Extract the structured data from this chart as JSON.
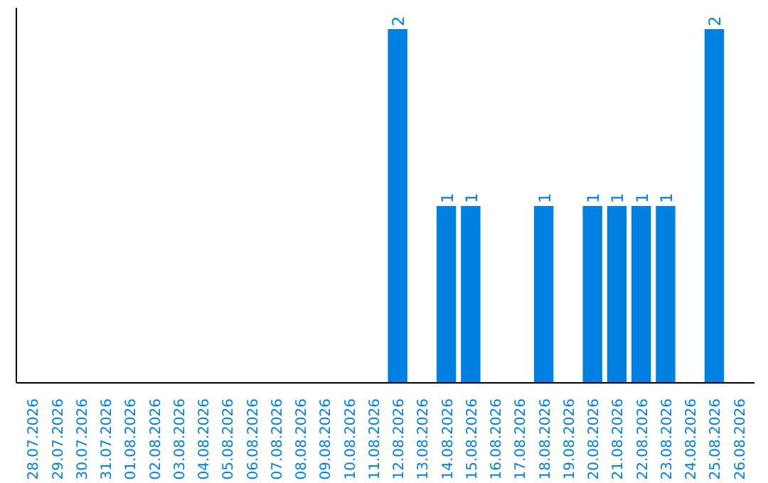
{
  "chart_data": {
    "type": "bar",
    "categories": [
      "28.07.2026",
      "29.07.2026",
      "30.07.2026",
      "31.07.2026",
      "01.08.2026",
      "02.08.2026",
      "03.08.2026",
      "04.08.2026",
      "05.08.2026",
      "06.08.2026",
      "07.08.2026",
      "08.08.2026",
      "09.08.2026",
      "10.08.2026",
      "11.08.2026",
      "12.08.2026",
      "13.08.2026",
      "14.08.2026",
      "15.08.2026",
      "16.08.2026",
      "17.08.2026",
      "18.08.2026",
      "19.08.2026",
      "20.08.2026",
      "21.08.2026",
      "22.08.2026",
      "23.08.2026",
      "24.08.2026",
      "25.08.2026",
      "26.08.2026"
    ],
    "values": [
      null,
      null,
      null,
      null,
      null,
      null,
      null,
      null,
      null,
      null,
      null,
      null,
      null,
      null,
      null,
      2,
      null,
      1,
      1,
      null,
      null,
      1,
      null,
      1,
      1,
      1,
      1,
      null,
      2,
      null
    ],
    "ylim": [
      0,
      2.12
    ],
    "value_labels": [
      null,
      null,
      null,
      null,
      null,
      null,
      null,
      null,
      null,
      null,
      null,
      null,
      null,
      null,
      null,
      "2",
      null,
      "1",
      "1",
      null,
      null,
      "1",
      null,
      "1",
      "1",
      "1",
      "1",
      null,
      "2",
      null
    ],
    "color": "#0080e0",
    "tick_labels": "x",
    "grid": false
  }
}
